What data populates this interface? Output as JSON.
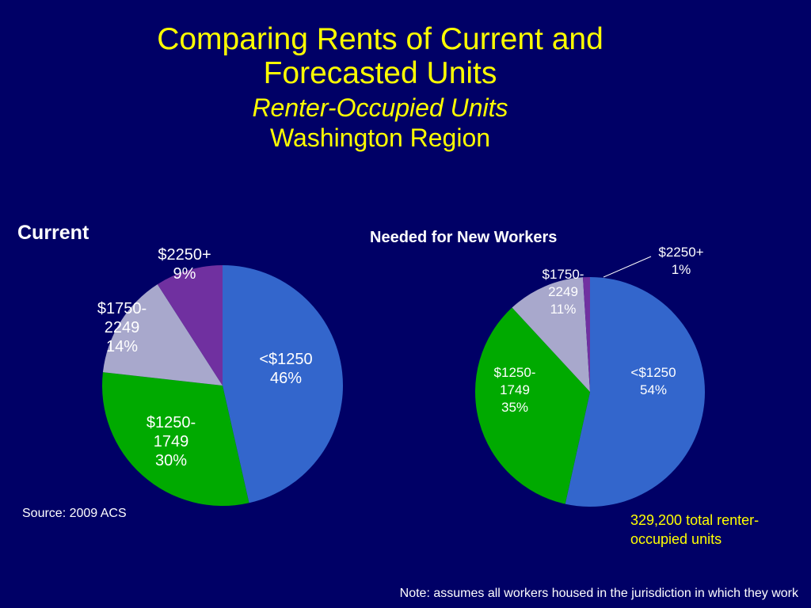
{
  "title": {
    "main": "Comparing Rents of Current and Forecasted Units",
    "sub": "Renter-Occupied Units",
    "sub2": "Washington Region"
  },
  "source": "Source: 2009 ACS",
  "total_label": "329,200 total renter-occupied units",
  "note": "Note: assumes all workers housed in the jurisdiction in which they work",
  "colors": {
    "background": "#000066",
    "title": "#ffff00",
    "lt1250": "#3366cc",
    "r1250_1749": "#00aa00",
    "r1750_2249": "#a8a8cc",
    "r2250plus": "#7030a0"
  },
  "chart_data": [
    {
      "type": "pie",
      "title": "Current",
      "categories": [
        "<$1250",
        "$1250-1749",
        "$1750-2249",
        "$2250+"
      ],
      "values": [
        46,
        30,
        14,
        9
      ],
      "labels": [
        [
          "<$1250",
          "46%"
        ],
        [
          "$1250-",
          "1749",
          "30%"
        ],
        [
          "$1750-",
          "2249",
          "14%"
        ],
        [
          "$2250+",
          "9%"
        ]
      ]
    },
    {
      "type": "pie",
      "title": "Needed for New Workers",
      "categories": [
        "<$1250",
        "$1250-1749",
        "$1750-2249",
        "$2250+"
      ],
      "values": [
        54,
        35,
        11,
        1
      ],
      "labels": [
        [
          "<$1250",
          "54%"
        ],
        [
          "$1250-",
          "1749",
          "35%"
        ],
        [
          "$1750-",
          "2249",
          "11%"
        ],
        [
          "$2250+",
          "1%"
        ]
      ]
    }
  ]
}
